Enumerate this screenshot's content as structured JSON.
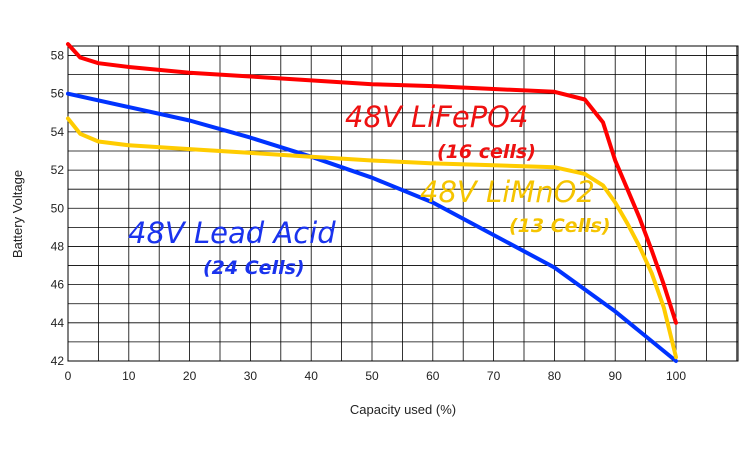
{
  "chart_data": {
    "type": "line",
    "xlabel": "Capacity used (%)",
    "ylabel": "Battery Voltage",
    "xlim": [
      0,
      100
    ],
    "ylim": [
      42,
      58.5
    ],
    "xticks": [
      0,
      10,
      20,
      30,
      40,
      50,
      60,
      70,
      80,
      90,
      100
    ],
    "yticks": [
      42,
      44,
      46,
      48,
      50,
      52,
      54,
      56,
      58
    ],
    "grid": true,
    "series": [
      {
        "name": "48V LiFePO4",
        "note": "(16 cells)",
        "color": "#ff0000",
        "points": [
          [
            0,
            58.6
          ],
          [
            2,
            57.9
          ],
          [
            5,
            57.6
          ],
          [
            10,
            57.4
          ],
          [
            20,
            57.1
          ],
          [
            30,
            56.9
          ],
          [
            40,
            56.7
          ],
          [
            50,
            56.5
          ],
          [
            60,
            56.4
          ],
          [
            70,
            56.25
          ],
          [
            80,
            56.1
          ],
          [
            85,
            55.7
          ],
          [
            88,
            54.5
          ],
          [
            90,
            52.5
          ],
          [
            92,
            51.0
          ],
          [
            94,
            49.5
          ],
          [
            96,
            47.8
          ],
          [
            98,
            46.0
          ],
          [
            100,
            44.0
          ]
        ]
      },
      {
        "name": "48V LiMnO2",
        "note": "(13 Cells)",
        "color": "#ffcc00",
        "points": [
          [
            0,
            54.7
          ],
          [
            2,
            53.9
          ],
          [
            5,
            53.5
          ],
          [
            10,
            53.3
          ],
          [
            20,
            53.1
          ],
          [
            30,
            52.9
          ],
          [
            40,
            52.7
          ],
          [
            50,
            52.5
          ],
          [
            60,
            52.35
          ],
          [
            70,
            52.25
          ],
          [
            80,
            52.15
          ],
          [
            85,
            51.8
          ],
          [
            88,
            51.2
          ],
          [
            90,
            50.3
          ],
          [
            92,
            49.2
          ],
          [
            94,
            48.0
          ],
          [
            96,
            46.6
          ],
          [
            98,
            44.8
          ],
          [
            100,
            42.2
          ]
        ]
      },
      {
        "name": "48V Lead Acid",
        "note": "(24 Cells)",
        "color": "#0033ff",
        "points": [
          [
            0,
            56.0
          ],
          [
            10,
            55.3
          ],
          [
            20,
            54.6
          ],
          [
            30,
            53.7
          ],
          [
            40,
            52.7
          ],
          [
            50,
            51.6
          ],
          [
            60,
            50.3
          ],
          [
            70,
            48.6
          ],
          [
            80,
            46.9
          ],
          [
            90,
            44.6
          ],
          [
            100,
            42.0
          ]
        ]
      }
    ]
  }
}
